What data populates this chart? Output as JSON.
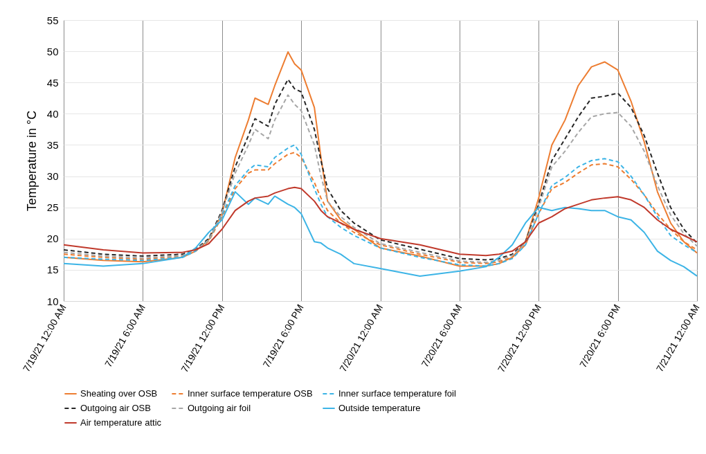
{
  "chart_data": {
    "type": "line",
    "ylabel": "Temperature in °C",
    "x": [
      "--07-19T00:00",
      "--07-19T03:00",
      "--07-19T06:00",
      "--07-19T09:00",
      "--07-19T10:00",
      "--07-19T11:00",
      "--07-19T12:00",
      "--07-19T13:00",
      "--07-19T14:00",
      "--07-19T14:30",
      "--07-19T15:30",
      "--07-19T16:00",
      "--07-19T17:00",
      "--07-19T17:30",
      "--07-19T18:00",
      "--07-19T19:00",
      "--07-19T19:30",
      "--07-19T20:00",
      "--07-19T21:00",
      "--07-19T22:00",
      "--07-20T00:00",
      "--07-20T03:00",
      "--07-20T06:00",
      "--07-20T08:00",
      "--07-20T09:00",
      "--07-20T10:00",
      "--07-20T11:00",
      "--07-20T12:00",
      "--07-20T13:00",
      "--07-20T14:00",
      "--07-20T15:00",
      "--07-20T16:00",
      "--07-20T17:00",
      "--07-20T18:00",
      "--07-20T19:00",
      "--07-20T20:00",
      "--07-20T21:00",
      "--07-20T22:00",
      "--07-20T23:00",
      "--07-21T00:00"
    ],
    "series": [
      {
        "name": "Sheating over OSB",
        "color": "#ed7d31",
        "line_style": "solid",
        "values": [
          17.0,
          16.5,
          16.3,
          17.0,
          18.0,
          19.8,
          24.0,
          33.0,
          39.0,
          42.5,
          41.5,
          44.5,
          49.9,
          48.0,
          47.0,
          41.0,
          33.0,
          26.0,
          23.0,
          21.5,
          18.5,
          17.2,
          15.6,
          15.6,
          16.0,
          17.0,
          19.5,
          26.5,
          35.0,
          39.0,
          44.5,
          47.5,
          48.3,
          47.0,
          42.0,
          35.5,
          27.5,
          22.5,
          19.5,
          17.7
        ]
      },
      {
        "name": "Inner surface temperature OSB",
        "color": "#ed7d31",
        "line_style": "dashed",
        "values": [
          17.5,
          17.0,
          16.7,
          17.2,
          18.0,
          19.6,
          23.5,
          28.0,
          30.5,
          31.0,
          31.0,
          32.0,
          33.5,
          33.8,
          33.0,
          29.0,
          26.5,
          24.5,
          22.5,
          21.0,
          19.0,
          17.5,
          16.2,
          16.0,
          16.3,
          17.0,
          19.0,
          24.0,
          28.0,
          29.0,
          30.5,
          31.8,
          32.0,
          31.5,
          29.5,
          27.0,
          24.0,
          21.5,
          19.5,
          18.2
        ]
      },
      {
        "name": "Inner surface temperature foil",
        "color": "#3cb4e6",
        "line_style": "dashed",
        "values": [
          17.0,
          16.7,
          16.5,
          17.0,
          18.0,
          19.8,
          23.8,
          28.5,
          31.0,
          31.8,
          31.5,
          33.0,
          34.5,
          35.0,
          33.5,
          28.0,
          25.5,
          23.5,
          21.8,
          20.5,
          18.5,
          17.0,
          15.8,
          15.6,
          16.0,
          16.8,
          19.0,
          24.0,
          28.5,
          29.8,
          31.5,
          32.5,
          32.8,
          32.3,
          30.0,
          27.0,
          23.5,
          20.5,
          19.0,
          17.8
        ]
      },
      {
        "name": "Outgoing air OSB",
        "color": "#262626",
        "line_style": "dashed",
        "values": [
          18.2,
          17.5,
          17.2,
          17.5,
          18.3,
          20.0,
          24.5,
          31.5,
          36.5,
          39.2,
          38.0,
          41.5,
          45.5,
          44.0,
          43.5,
          37.5,
          32.5,
          28.0,
          24.5,
          22.5,
          19.8,
          18.3,
          16.8,
          16.6,
          16.8,
          17.5,
          19.5,
          25.5,
          32.5,
          36.0,
          39.5,
          42.5,
          42.8,
          43.3,
          41.0,
          36.5,
          30.5,
          25.0,
          21.5,
          19.3
        ]
      },
      {
        "name": "Outgoing air foil",
        "color": "#a6a6a6",
        "line_style": "dashed",
        "values": [
          17.8,
          17.2,
          16.9,
          17.3,
          18.2,
          19.8,
          24.2,
          30.5,
          35.0,
          37.5,
          36.0,
          39.0,
          43.0,
          41.5,
          40.5,
          35.0,
          30.0,
          26.0,
          23.5,
          21.8,
          19.2,
          17.8,
          16.4,
          16.2,
          16.5,
          17.3,
          19.3,
          25.0,
          31.5,
          34.0,
          37.0,
          39.5,
          40.0,
          40.2,
          38.0,
          34.0,
          28.5,
          23.8,
          20.8,
          18.8
        ]
      },
      {
        "name": "Outside temperature",
        "color": "#3cb4e6",
        "line_style": "solid",
        "values": [
          16.0,
          15.6,
          16.0,
          17.0,
          18.5,
          21.0,
          23.0,
          27.5,
          25.5,
          26.5,
          25.5,
          26.8,
          25.5,
          25.0,
          24.0,
          19.5,
          19.3,
          18.5,
          17.5,
          16.0,
          15.2,
          14.0,
          14.8,
          15.5,
          17.0,
          19.0,
          22.5,
          25.0,
          24.5,
          25.0,
          24.8,
          24.5,
          24.5,
          23.5,
          23.0,
          21.0,
          18.0,
          16.5,
          15.5,
          14.0
        ]
      },
      {
        "name": "Air temperature attic",
        "color": "#c0392b",
        "line_style": "solid",
        "values": [
          19.0,
          18.2,
          17.7,
          17.8,
          18.2,
          19.2,
          21.5,
          24.5,
          26.0,
          26.5,
          26.8,
          27.3,
          28.0,
          28.2,
          28.0,
          26.0,
          24.5,
          23.5,
          22.5,
          21.5,
          20.0,
          19.0,
          17.5,
          17.3,
          17.5,
          18.0,
          19.5,
          22.5,
          23.5,
          24.8,
          25.5,
          26.2,
          26.5,
          26.7,
          26.2,
          25.0,
          23.0,
          21.5,
          20.5,
          19.5
        ]
      }
    ],
    "xlim": [
      "--07-19T00:00",
      "--07-21T00:00"
    ],
    "xticks": [
      {
        "value": "--07-19T00:00",
        "label": "7/19/21 12:00 AM"
      },
      {
        "value": "--07-19T06:00",
        "label": "7/19/21 6:00 AM"
      },
      {
        "value": "--07-19T12:00",
        "label": "7/19/21 12:00 PM"
      },
      {
        "value": "--07-19T18:00",
        "label": "7/19/21 6:00 PM"
      },
      {
        "value": "--07-20T00:00",
        "label": "7/20/21 12:00 AM"
      },
      {
        "value": "--07-20T06:00",
        "label": "7/20/21 6:00 AM"
      },
      {
        "value": "--07-20T12:00",
        "label": "7/20/21 12:00 PM"
      },
      {
        "value": "--07-20T18:00",
        "label": "7/20/21 6:00 PM"
      },
      {
        "value": "--07-21T00:00",
        "label": "7/21/21 12:00 AM"
      }
    ],
    "ylim": [
      10,
      55
    ],
    "yticks": [
      10,
      15,
      20,
      25,
      30,
      35,
      40,
      45,
      50,
      55
    ],
    "grid": true,
    "legend": "bottom"
  }
}
